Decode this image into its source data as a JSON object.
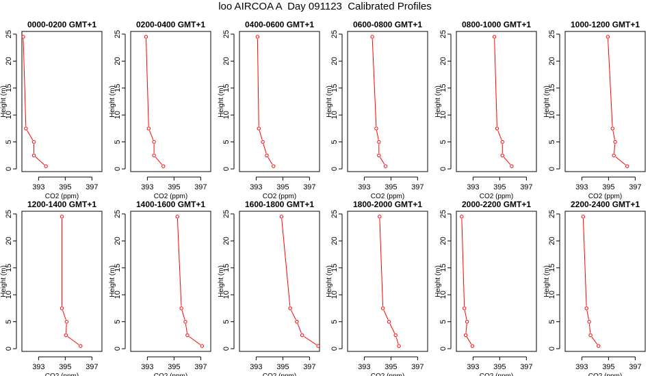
{
  "figure_title": "loo AIRCOA A  Day 091123  Calibrated Profiles",
  "chart_data": [
    {
      "type": "line",
      "title": "0000-0200 GMT+1",
      "xlabel": "CO2 (ppm)",
      "ylabel": "Height (m)",
      "x_ticks": [
        "393",
        "395",
        "397"
      ],
      "y_ticks": [
        "0",
        "5",
        "10",
        "15",
        "20",
        "25"
      ],
      "xlim": [
        391.75,
        397.75
      ],
      "ylim": [
        -0.5,
        25.5
      ],
      "color": "#ff0000",
      "series": [
        {
          "points": [
            {
              "x": 391.85,
              "y": 24.5
            },
            {
              "x": 392.05,
              "y": 7.5
            },
            {
              "x": 392.65,
              "y": 5.0
            },
            {
              "x": 392.65,
              "y": 2.5
            },
            {
              "x": 393.55,
              "y": 0.5
            }
          ]
        }
      ]
    },
    {
      "type": "line",
      "title": "0200-0400 GMT+1",
      "xlabel": "CO2 (ppm)",
      "ylabel": "Height (m)",
      "x_ticks": [
        "393",
        "395",
        "397"
      ],
      "y_ticks": [
        "0",
        "5",
        "10",
        "15",
        "20",
        "25"
      ],
      "xlim": [
        391.75,
        397.75
      ],
      "ylim": [
        -0.5,
        25.5
      ],
      "color": "#ff0000",
      "series": [
        {
          "points": [
            {
              "x": 392.9,
              "y": 24.5
            },
            {
              "x": 393.1,
              "y": 7.5
            },
            {
              "x": 393.5,
              "y": 5.0
            },
            {
              "x": 393.5,
              "y": 2.5
            },
            {
              "x": 394.2,
              "y": 0.5
            }
          ]
        }
      ]
    },
    {
      "type": "line",
      "title": "0400-0600 GMT+1",
      "xlabel": "CO2 (ppm)",
      "ylabel": "Height (m)",
      "x_ticks": [
        "393",
        "395",
        "397"
      ],
      "y_ticks": [
        "0",
        "5",
        "10",
        "15",
        "20",
        "25"
      ],
      "xlim": [
        391.75,
        397.75
      ],
      "ylim": [
        -0.5,
        25.5
      ],
      "color": "#ff0000",
      "series": [
        {
          "points": [
            {
              "x": 393.1,
              "y": 24.5
            },
            {
              "x": 393.2,
              "y": 7.5
            },
            {
              "x": 393.5,
              "y": 5.0
            },
            {
              "x": 393.8,
              "y": 2.5
            },
            {
              "x": 394.3,
              "y": 0.5
            }
          ]
        }
      ]
    },
    {
      "type": "line",
      "title": "0600-0800 GMT+1",
      "xlabel": "CO2 (ppm)",
      "ylabel": "Height (m)",
      "x_ticks": [
        "393",
        "395",
        "397"
      ],
      "y_ticks": [
        "0",
        "5",
        "10",
        "15",
        "20",
        "25"
      ],
      "xlim": [
        391.75,
        397.75
      ],
      "ylim": [
        -0.5,
        25.5
      ],
      "color": "#ff0000",
      "series": [
        {
          "points": [
            {
              "x": 393.6,
              "y": 24.5
            },
            {
              "x": 393.9,
              "y": 7.5
            },
            {
              "x": 394.1,
              "y": 5.0
            },
            {
              "x": 394.1,
              "y": 2.5
            },
            {
              "x": 394.6,
              "y": 0.5
            }
          ]
        }
      ]
    },
    {
      "type": "line",
      "title": "0800-1000 GMT+1",
      "xlabel": "CO2 (ppm)",
      "ylabel": "Height (m)",
      "x_ticks": [
        "393",
        "395",
        "397"
      ],
      "y_ticks": [
        "0",
        "5",
        "10",
        "15",
        "20",
        "25"
      ],
      "xlim": [
        391.75,
        397.75
      ],
      "ylim": [
        -0.5,
        25.5
      ],
      "color": "#ff0000",
      "series": [
        {
          "points": [
            {
              "x": 394.6,
              "y": 24.5
            },
            {
              "x": 394.8,
              "y": 7.5
            },
            {
              "x": 395.2,
              "y": 5.0
            },
            {
              "x": 395.2,
              "y": 2.5
            },
            {
              "x": 395.9,
              "y": 0.5
            }
          ]
        }
      ]
    },
    {
      "type": "line",
      "title": "1000-1200 GMT+1",
      "xlabel": "CO2 (ppm)",
      "ylabel": "Height (m)",
      "x_ticks": [
        "393",
        "395",
        "397"
      ],
      "y_ticks": [
        "0",
        "5",
        "10",
        "15",
        "20",
        "25"
      ],
      "xlim": [
        391.75,
        397.75
      ],
      "ylim": [
        -0.5,
        25.5
      ],
      "color": "#ff0000",
      "series": [
        {
          "points": [
            {
              "x": 394.95,
              "y": 24.5
            },
            {
              "x": 395.3,
              "y": 7.5
            },
            {
              "x": 395.5,
              "y": 5.0
            },
            {
              "x": 395.4,
              "y": 2.5
            },
            {
              "x": 396.4,
              "y": 0.5
            }
          ]
        }
      ]
    },
    {
      "type": "line",
      "title": "1200-1400 GMT+1",
      "xlabel": "CO2 (ppm)",
      "ylabel": "Height (m)",
      "x_ticks": [
        "393",
        "395",
        "397"
      ],
      "y_ticks": [
        "0",
        "5",
        "10",
        "15",
        "20",
        "25"
      ],
      "xlim": [
        391.75,
        397.75
      ],
      "ylim": [
        -0.5,
        25.5
      ],
      "color": "#ff0000",
      "series": [
        {
          "points": [
            {
              "x": 394.75,
              "y": 24.5
            },
            {
              "x": 394.75,
              "y": 7.5
            },
            {
              "x": 395.1,
              "y": 5.0
            },
            {
              "x": 395.05,
              "y": 2.5
            },
            {
              "x": 396.15,
              "y": 0.5
            }
          ]
        }
      ]
    },
    {
      "type": "line",
      "title": "1400-1600 GMT+1",
      "xlabel": "CO2 (ppm)",
      "ylabel": "Height (m)",
      "x_ticks": [
        "393",
        "395",
        "397"
      ],
      "y_ticks": [
        "0",
        "5",
        "10",
        "15",
        "20",
        "25"
      ],
      "xlim": [
        391.75,
        397.75
      ],
      "ylim": [
        -0.5,
        25.5
      ],
      "color": "#ff0000",
      "series": [
        {
          "points": [
            {
              "x": 395.25,
              "y": 24.5
            },
            {
              "x": 395.55,
              "y": 7.5
            },
            {
              "x": 395.85,
              "y": 5.0
            },
            {
              "x": 396.0,
              "y": 2.5
            },
            {
              "x": 397.1,
              "y": 0.5
            }
          ]
        }
      ]
    },
    {
      "type": "line",
      "title": "1600-1800 GMT+1",
      "xlabel": "CO2 (ppm)",
      "ylabel": "Height (m)",
      "x_ticks": [
        "393",
        "395",
        "397"
      ],
      "y_ticks": [
        "0",
        "5",
        "10",
        "15",
        "20",
        "25"
      ],
      "xlim": [
        391.75,
        397.75
      ],
      "ylim": [
        -0.5,
        25.5
      ],
      "color": "#ff0000",
      "series": [
        {
          "points": [
            {
              "x": 394.9,
              "y": 24.5
            },
            {
              "x": 395.55,
              "y": 7.5
            },
            {
              "x": 396.05,
              "y": 5.0
            },
            {
              "x": 396.45,
              "y": 2.5
            },
            {
              "x": 397.65,
              "y": 0.5
            }
          ]
        }
      ]
    },
    {
      "type": "line",
      "title": "1800-2000 GMT+1",
      "xlabel": "CO2 (ppm)",
      "ylabel": "Height (m)",
      "x_ticks": [
        "393",
        "395",
        "397"
      ],
      "y_ticks": [
        "0",
        "5",
        "10",
        "15",
        "20",
        "25"
      ],
      "xlim": [
        391.75,
        397.75
      ],
      "ylim": [
        -0.5,
        25.5
      ],
      "color": "#ff0000",
      "series": [
        {
          "points": [
            {
              "x": 394.15,
              "y": 24.5
            },
            {
              "x": 394.4,
              "y": 7.5
            },
            {
              "x": 394.85,
              "y": 5.0
            },
            {
              "x": 395.35,
              "y": 2.5
            },
            {
              "x": 395.6,
              "y": 0.5
            }
          ]
        }
      ]
    },
    {
      "type": "line",
      "title": "2000-2200 GMT+1",
      "xlabel": "CO2 (ppm)",
      "ylabel": "Height (m)",
      "x_ticks": [
        "393",
        "395",
        "397"
      ],
      "y_ticks": [
        "0",
        "5",
        "10",
        "15",
        "20",
        "25"
      ],
      "xlim": [
        391.75,
        397.75
      ],
      "ylim": [
        -0.5,
        25.5
      ],
      "color": "#ff0000",
      "series": [
        {
          "points": [
            {
              "x": 392.15,
              "y": 24.5
            },
            {
              "x": 392.35,
              "y": 7.5
            },
            {
              "x": 392.55,
              "y": 5.0
            },
            {
              "x": 392.45,
              "y": 2.5
            },
            {
              "x": 392.95,
              "y": 0.5
            }
          ]
        }
      ]
    },
    {
      "type": "line",
      "title": "2200-2400 GMT+1",
      "xlabel": "CO2 (ppm)",
      "ylabel": "Height (m)",
      "x_ticks": [
        "393",
        "395",
        "397"
      ],
      "y_ticks": [
        "0",
        "5",
        "10",
        "15",
        "20",
        "25"
      ],
      "xlim": [
        391.75,
        397.75
      ],
      "ylim": [
        -0.5,
        25.5
      ],
      "color": "#ff0000",
      "series": [
        {
          "points": [
            {
              "x": 393.1,
              "y": 24.5
            },
            {
              "x": 393.35,
              "y": 7.5
            },
            {
              "x": 393.55,
              "y": 5.0
            },
            {
              "x": 393.65,
              "y": 2.5
            },
            {
              "x": 394.25,
              "y": 0.5
            }
          ]
        }
      ]
    }
  ]
}
